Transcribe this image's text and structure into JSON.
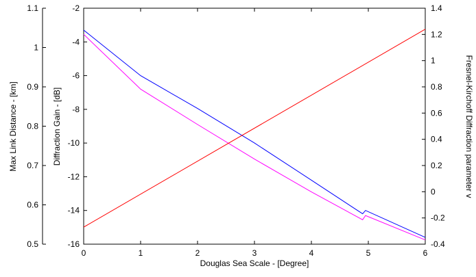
{
  "chart_data": {
    "type": "line",
    "xlabel": "Douglas Sea Scale - [Degree]",
    "xlim": [
      0,
      6
    ],
    "xticks": [
      "0",
      "1",
      "2",
      "3",
      "4",
      "5",
      "6"
    ],
    "y_axes": [
      {
        "id": "left-outer",
        "label": "Max Link Distance - [km]",
        "lim": [
          0.5,
          1.1
        ],
        "ticks": [
          "0.5",
          "0.6",
          "0.7",
          "0.8",
          "0.9",
          "1",
          "1.1"
        ]
      },
      {
        "id": "left-inner",
        "label": "Diffraction Gain - [dB]",
        "lim": [
          -16,
          -2
        ],
        "ticks": [
          "-16",
          "-14",
          "-12",
          "-10",
          "-8",
          "-6",
          "-4",
          "-2"
        ]
      },
      {
        "id": "right",
        "label": "Fresnel-Kirchoff Diffraction parameter  v",
        "lim": [
          -0.4,
          1.4
        ],
        "ticks": [
          "-0.4",
          "-0.2",
          "0",
          "0.2",
          "0.4",
          "0.6",
          "0.8",
          "1",
          "1.2",
          "1.4"
        ]
      }
    ],
    "series": [
      {
        "color": "#0000ff",
        "axis": "left-inner",
        "points": [
          [
            0,
            -3.3
          ],
          [
            1,
            -6.0
          ],
          [
            2,
            -7.95
          ],
          [
            3,
            -10.0
          ],
          [
            4,
            -12.2
          ],
          [
            4.9,
            -14.2
          ],
          [
            4.95,
            -14.0
          ],
          [
            6,
            -15.6
          ]
        ]
      },
      {
        "color": "#ff00ff",
        "axis": "left-inner",
        "points": [
          [
            0,
            -3.55
          ],
          [
            1,
            -6.8
          ],
          [
            2,
            -8.9
          ],
          [
            3,
            -10.95
          ],
          [
            4,
            -12.9
          ],
          [
            4.9,
            -14.55
          ],
          [
            4.95,
            -14.3
          ],
          [
            6,
            -15.75
          ]
        ]
      },
      {
        "color": "#ff0000",
        "axis": "right",
        "points": [
          [
            0,
            -0.27
          ],
          [
            6,
            1.24
          ]
        ]
      }
    ],
    "grid": false,
    "legend": "none"
  }
}
